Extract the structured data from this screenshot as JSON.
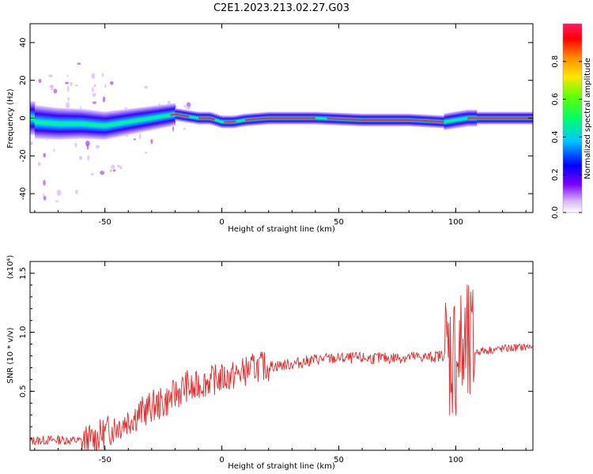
{
  "title": "C2E1.2023.213.02.27.G03",
  "colors": {
    "snr_line": "#e32b2b",
    "axis": "#000000",
    "ridge": "#00ff66"
  },
  "chart_data": [
    {
      "type": "heatmap",
      "xlabel": "Height of straight line (km)",
      "ylabel": "Frequency (Hz)",
      "xlim": [
        -82,
        133
      ],
      "ylim": [
        -50,
        50
      ],
      "xticks": [
        -50,
        0,
        50,
        100
      ],
      "yticks": [
        -40,
        -20,
        0,
        20,
        40
      ],
      "colorbar": {
        "label": "Normalized spectral amplitude",
        "range": [
          0,
          1
        ],
        "ticks": [
          0.0,
          0.2,
          0.4,
          0.6,
          0.8
        ]
      },
      "ridge": {
        "x": [
          -80,
          -70,
          -60,
          -50,
          -40,
          -30,
          -25,
          -20,
          -15,
          -10,
          -5,
          0,
          5,
          10,
          20,
          40,
          60,
          80,
          95,
          100,
          105,
          110,
          120,
          133
        ],
        "freq": [
          -2,
          -3,
          -3,
          -4,
          -2,
          0,
          1,
          2,
          1,
          0,
          0,
          -2,
          -2,
          -1,
          0,
          0,
          -1,
          -1,
          -2,
          -1,
          0,
          0,
          0,
          0
        ]
      }
    },
    {
      "type": "line",
      "xlabel": "Height of straight line (km)",
      "ylabel": "SNR (10 * v/v)",
      "yscale_label": "(x10⁴)",
      "xlim": [
        -82,
        133
      ],
      "ylim": [
        0,
        16000
      ],
      "xticks": [
        -50,
        0,
        50,
        100
      ],
      "yticks": [
        0.5,
        1.0,
        1.5
      ],
      "ytick_labels": [
        "0.5",
        "1.0",
        "1.5"
      ],
      "series": [
        {
          "x": [
            -82,
            -70,
            -60,
            -55,
            -50,
            -40,
            -30,
            -25,
            -20,
            -15,
            -12,
            -10,
            -5,
            0,
            5,
            10,
            15,
            20,
            25,
            30,
            40,
            50,
            60,
            70,
            80,
            90,
            95,
            100,
            102,
            104,
            106,
            108,
            110,
            120,
            133
          ],
          "y": [
            800,
            900,
            800,
            900,
            1500,
            2600,
            3700,
            4000,
            4700,
            5500,
            5000,
            5600,
            5900,
            6100,
            6300,
            6700,
            7100,
            7100,
            7200,
            7300,
            7700,
            7800,
            7800,
            7800,
            7900,
            7900,
            8100,
            8200,
            8000,
            8100,
            8100,
            8300,
            8400,
            8600,
            8800
          ]
        }
      ]
    }
  ]
}
